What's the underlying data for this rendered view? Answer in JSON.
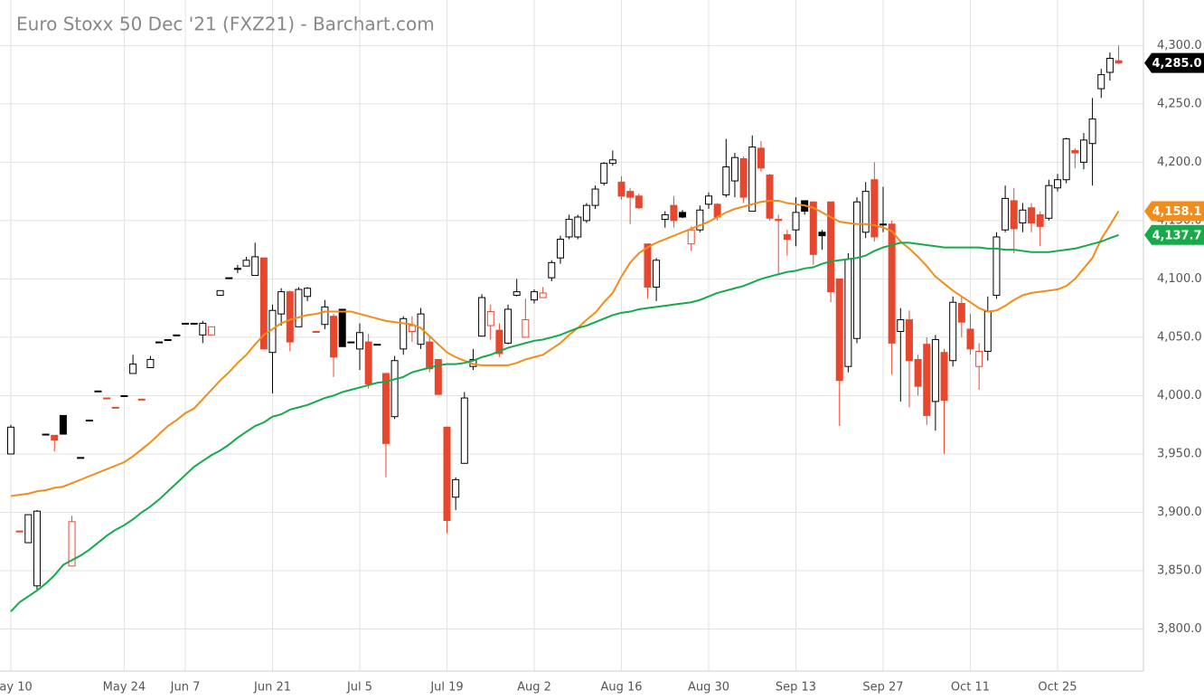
{
  "chart_data": {
    "type": "candlestick",
    "title": "Euro Stoxx 50 Dec '21 (FXZ21) - Barchart.com",
    "categories": [
      "May 10",
      null,
      null,
      null,
      null,
      null,
      null,
      null,
      null,
      null,
      null,
      null,
      null,
      "May 24",
      null,
      null,
      null,
      null,
      null,
      null,
      "Jun 7",
      null,
      null,
      null,
      null,
      null,
      null,
      null,
      null,
      null,
      "Jun 21",
      null,
      null,
      null,
      null,
      null,
      null,
      null,
      null,
      null,
      "Jul 5",
      null,
      null,
      null,
      null,
      null,
      null,
      null,
      null,
      null,
      "Jul 19",
      null,
      null,
      null,
      null,
      null,
      null,
      null,
      null,
      null,
      "Aug 2",
      null,
      null,
      null,
      null,
      null,
      null,
      null,
      null,
      null,
      "Aug 16",
      null,
      null,
      null,
      null,
      null,
      null,
      null,
      null,
      null,
      "Aug 30",
      null,
      null,
      null,
      null,
      null,
      null,
      null,
      null,
      null,
      "Sep 13",
      null,
      null,
      null,
      null,
      null,
      null,
      null,
      null,
      null,
      "Sep 27",
      null,
      null,
      null,
      null,
      null,
      null,
      null,
      null,
      null,
      "Oct 11",
      null,
      null,
      null,
      null,
      null,
      null,
      null,
      null,
      null,
      "Oct 25",
      null,
      null,
      null,
      null,
      null,
      null,
      null
    ],
    "open": [
      3950,
      3884,
      3874,
      3837,
      3967,
      3966,
      3983,
      3854,
      3947,
      3979,
      4004,
      3998,
      3990,
      4000,
      4019,
      3997,
      4024,
      4046,
      4048,
      4052,
      4062,
      4062,
      4052,
      4052,
      4086,
      4101,
      4109,
      4111,
      4103,
      4118,
      4037,
      4070,
      4089,
      4059,
      4085,
      4055,
      4061,
      4068,
      4074,
      4046,
      4040,
      4046,
      4044,
      4019,
      3982,
      4040,
      4055,
      4044,
      4046,
      4031,
      3973,
      3913,
      3942,
      4025,
      4051,
      4060,
      4056,
      4045,
      4086,
      4050,
      4082,
      4084,
      4101,
      4118,
      4136,
      4136,
      4150,
      4163,
      4182,
      4199,
      4183,
      4175,
      4171,
      4130,
      4093,
      4151,
      4163,
      4157,
      4130,
      4142,
      4164,
      4164,
      4172,
      4184,
      4203,
      4158,
      4212,
      4189,
      4151,
      4138,
      4142,
      4167,
      4166,
      4140,
      4166,
      4100,
      4025,
      4049,
      4140,
      4185,
      4147,
      4147,
      4055,
      4065,
      4031,
      4044,
      3995,
      4037,
      4030,
      4079,
      4057,
      4025,
      4038,
      4086,
      4142,
      4167,
      4148,
      4161,
      4155,
      4152,
      4178,
      4185,
      4210,
      4200,
      4216,
      4263,
      4277,
      4287
    ],
    "high": [
      3975,
      3884,
      3898,
      3902,
      3967,
      3966,
      3983,
      3897,
      3947,
      3979,
      4004,
      3998,
      3990,
      4000,
      4035,
      3997,
      4034,
      4046,
      4048,
      4052,
      4062,
      4062,
      4064,
      4059,
      4090,
      4101,
      4112,
      4119,
      4131,
      4118,
      4078,
      4092,
      4090,
      4093,
      4093,
      4055,
      4082,
      4070,
      4074,
      4046,
      4062,
      4053,
      4044,
      4019,
      4034,
      4068,
      4068,
      4075,
      4050,
      4031,
      3973,
      3930,
      4003,
      4040,
      4087,
      4078,
      4062,
      4078,
      4100,
      4083,
      4091,
      4093,
      4116,
      4137,
      4155,
      4155,
      4165,
      4180,
      4200,
      4210,
      4188,
      4178,
      4173,
      4130,
      4118,
      4158,
      4171,
      4159,
      4145,
      4163,
      4174,
      4165,
      4220,
      4208,
      4205,
      4223,
      4218,
      4190,
      4155,
      4142,
      4170,
      4167,
      4166,
      4142,
      4166,
      4100,
      4122,
      4170,
      4183,
      4200,
      4179,
      4150,
      4075,
      4073,
      4035,
      4050,
      4052,
      4040,
      4085,
      4085,
      4070,
      4045,
      4085,
      4140,
      4180,
      4178,
      4165,
      4165,
      4158,
      4185,
      4190,
      4221,
      4212,
      4225,
      4255,
      4280,
      4294,
      4300
    ],
    "low": [
      3950,
      3884,
      3874,
      3834,
      3967,
      3952,
      3967,
      3854,
      3947,
      3979,
      4004,
      3998,
      3990,
      4000,
      4019,
      3997,
      4024,
      4046,
      4048,
      4052,
      4062,
      4062,
      4045,
      4052,
      4086,
      4101,
      4105,
      4111,
      4103,
      4040,
      4002,
      4060,
      4038,
      4059,
      4081,
      4055,
      4057,
      4016,
      4042,
      4046,
      4022,
      4006,
      4044,
      3930,
      3980,
      4035,
      4046,
      4040,
      4020,
      4001,
      3882,
      3902,
      3942,
      4022,
      4051,
      4048,
      4033,
      4044,
      4085,
      4050,
      4079,
      4084,
      4098,
      4113,
      4134,
      4134,
      4148,
      4160,
      4180,
      4197,
      4168,
      4147,
      4160,
      4083,
      4081,
      4144,
      4144,
      4152,
      4124,
      4140,
      4160,
      4150,
      4170,
      4170,
      4165,
      4158,
      4192,
      4150,
      4105,
      4120,
      4128,
      4155,
      4112,
      4125,
      4080,
      3974,
      4020,
      4045,
      4135,
      4132,
      4140,
      4018,
      3995,
      3990,
      4000,
      3975,
      3970,
      3950,
      4025,
      4050,
      4035,
      4005,
      4030,
      4083,
      4140,
      4122,
      4140,
      4140,
      4128,
      4150,
      4175,
      4182,
      4195,
      4194,
      4180,
      4255,
      4270,
      4284
    ],
    "close": [
      3973,
      3884,
      3898,
      3901,
      3967,
      3962,
      3967,
      3892,
      3947,
      3979,
      4004,
      3998,
      3990,
      4000,
      4027,
      3997,
      4031,
      4046,
      4048,
      4052,
      4062,
      4062,
      4062,
      4059,
      4090,
      4101,
      4109,
      4116,
      4119,
      4040,
      4073,
      4089,
      4046,
      4091,
      4092,
      4055,
      4076,
      4033,
      4042,
      4046,
      4054,
      4010,
      4044,
      3959,
      4030,
      4066,
      4060,
      4070,
      4023,
      4001,
      3893,
      3928,
      3998,
      4031,
      4084,
      4072,
      4036,
      4074,
      4089,
      4065,
      4089,
      4088,
      4114,
      4134,
      4151,
      4153,
      4163,
      4177,
      4199,
      4202,
      4171,
      4170,
      4161,
      4093,
      4116,
      4155,
      4150,
      4153,
      4142,
      4159,
      4171,
      4153,
      4196,
      4204,
      4170,
      4213,
      4195,
      4152,
      4150,
      4134,
      4157,
      4158,
      4121,
      4137,
      4089,
      4013,
      4117,
      4166,
      4175,
      4136,
      4147,
      4045,
      4065,
      4030,
      4008,
      3983,
      4048,
      3996,
      4080,
      4063,
      4040,
      4038,
      4072,
      4136,
      4169,
      4143,
      4159,
      4148,
      4145,
      4180,
      4185,
      4220,
      4208,
      4219,
      4237,
      4275,
      4289,
      4285
    ],
    "last_label": "4,285.0",
    "up_color": "#000000",
    "down_color": "#e8472f",
    "lines": [
      {
        "color": "#f28c1a",
        "last_label": "4,158.1",
        "values": [
          3914,
          3915,
          3916,
          3918,
          3919,
          3921,
          3922,
          3925,
          3928,
          3931,
          3934,
          3937,
          3940,
          3943,
          3948,
          3954,
          3960,
          3967,
          3974,
          3979,
          3985,
          3989,
          3997,
          4005,
          4013,
          4020,
          4028,
          4035,
          4044,
          4052,
          4057,
          4062,
          4065,
          4067,
          4069,
          4070,
          4072,
          4072,
          4072,
          4072,
          4070,
          4068,
          4066,
          4064,
          4063,
          4062,
          4061,
          4058,
          4051,
          4044,
          4037,
          4033,
          4030,
          4027,
          4026,
          4026,
          4026,
          4026,
          4028,
          4031,
          4033,
          4035,
          4040,
          4045,
          4052,
          4058,
          4065,
          4071,
          4080,
          4088,
          4102,
          4114,
          4122,
          4127,
          4131,
          4134,
          4137,
          4140,
          4143,
          4146,
          4149,
          4153,
          4157,
          4160,
          4162,
          4164,
          4166,
          4167,
          4167,
          4165,
          4164,
          4163,
          4161,
          4157,
          4153,
          4149,
          4148,
          4147,
          4147,
          4146,
          4144,
          4141,
          4132,
          4126,
          4119,
          4111,
          4102,
          4096,
          4090,
          4085,
          4080,
          4075,
          4072,
          4073,
          4077,
          4082,
          4086,
          4088,
          4089,
          4090,
          4091,
          4094,
          4100,
          4109,
          4118,
          4134,
          4146,
          4158.1
        ]
      },
      {
        "color": "#17a94a",
        "last_label": "4,137.7",
        "values": [
          3815,
          3823,
          3828,
          3833,
          3839,
          3846,
          3855,
          3859,
          3863,
          3868,
          3874,
          3880,
          3885,
          3889,
          3894,
          3900,
          3905,
          3911,
          3918,
          3925,
          3932,
          3939,
          3944,
          3949,
          3953,
          3958,
          3964,
          3969,
          3974,
          3977,
          3982,
          3984,
          3988,
          3990,
          3992,
          3995,
          3998,
          4000,
          4003,
          4005,
          4007,
          4009,
          4011,
          4012,
          4014,
          4016,
          4020,
          4022,
          4024,
          4026,
          4027,
          4027,
          4028,
          4030,
          4033,
          4035,
          4038,
          4041,
          4043,
          4045,
          4047,
          4048,
          4050,
          4052,
          4055,
          4058,
          4060,
          4063,
          4066,
          4069,
          4071,
          4072,
          4074,
          4075,
          4076,
          4077,
          4078,
          4079,
          4080,
          4082,
          4085,
          4088,
          4090,
          4092,
          4094,
          4097,
          4100,
          4102,
          4104,
          4106,
          4107,
          4109,
          4110,
          4113,
          4115,
          4116,
          4117,
          4118,
          4120,
          4124,
          4127,
          4129,
          4131,
          4131,
          4130,
          4129,
          4128,
          4127,
          4127,
          4127,
          4127,
          4127,
          4126,
          4126,
          4125,
          4125,
          4124,
          4123,
          4123,
          4123,
          4124,
          4125,
          4126,
          4128,
          4130,
          4132,
          4135,
          4137.7
        ]
      }
    ],
    "ylim": [
      3764,
      4339
    ],
    "yticks": [
      {
        "value": 3800,
        "label": "3,800.0"
      },
      {
        "value": 3850,
        "label": "3,850.0"
      },
      {
        "value": 3900,
        "label": "3,900.0"
      },
      {
        "value": 3950,
        "label": "3,950.0"
      },
      {
        "value": 4000,
        "label": "4,000.0"
      },
      {
        "value": 4050,
        "label": "4,050.0"
      },
      {
        "value": 4100,
        "label": "4,100.0"
      },
      {
        "value": 4150,
        "label": "4,150.0"
      },
      {
        "value": 4200,
        "label": "4,200.0"
      },
      {
        "value": 4250,
        "label": "4,250.0"
      },
      {
        "value": 4300,
        "label": "4,300.0"
      }
    ],
    "grid": true
  }
}
